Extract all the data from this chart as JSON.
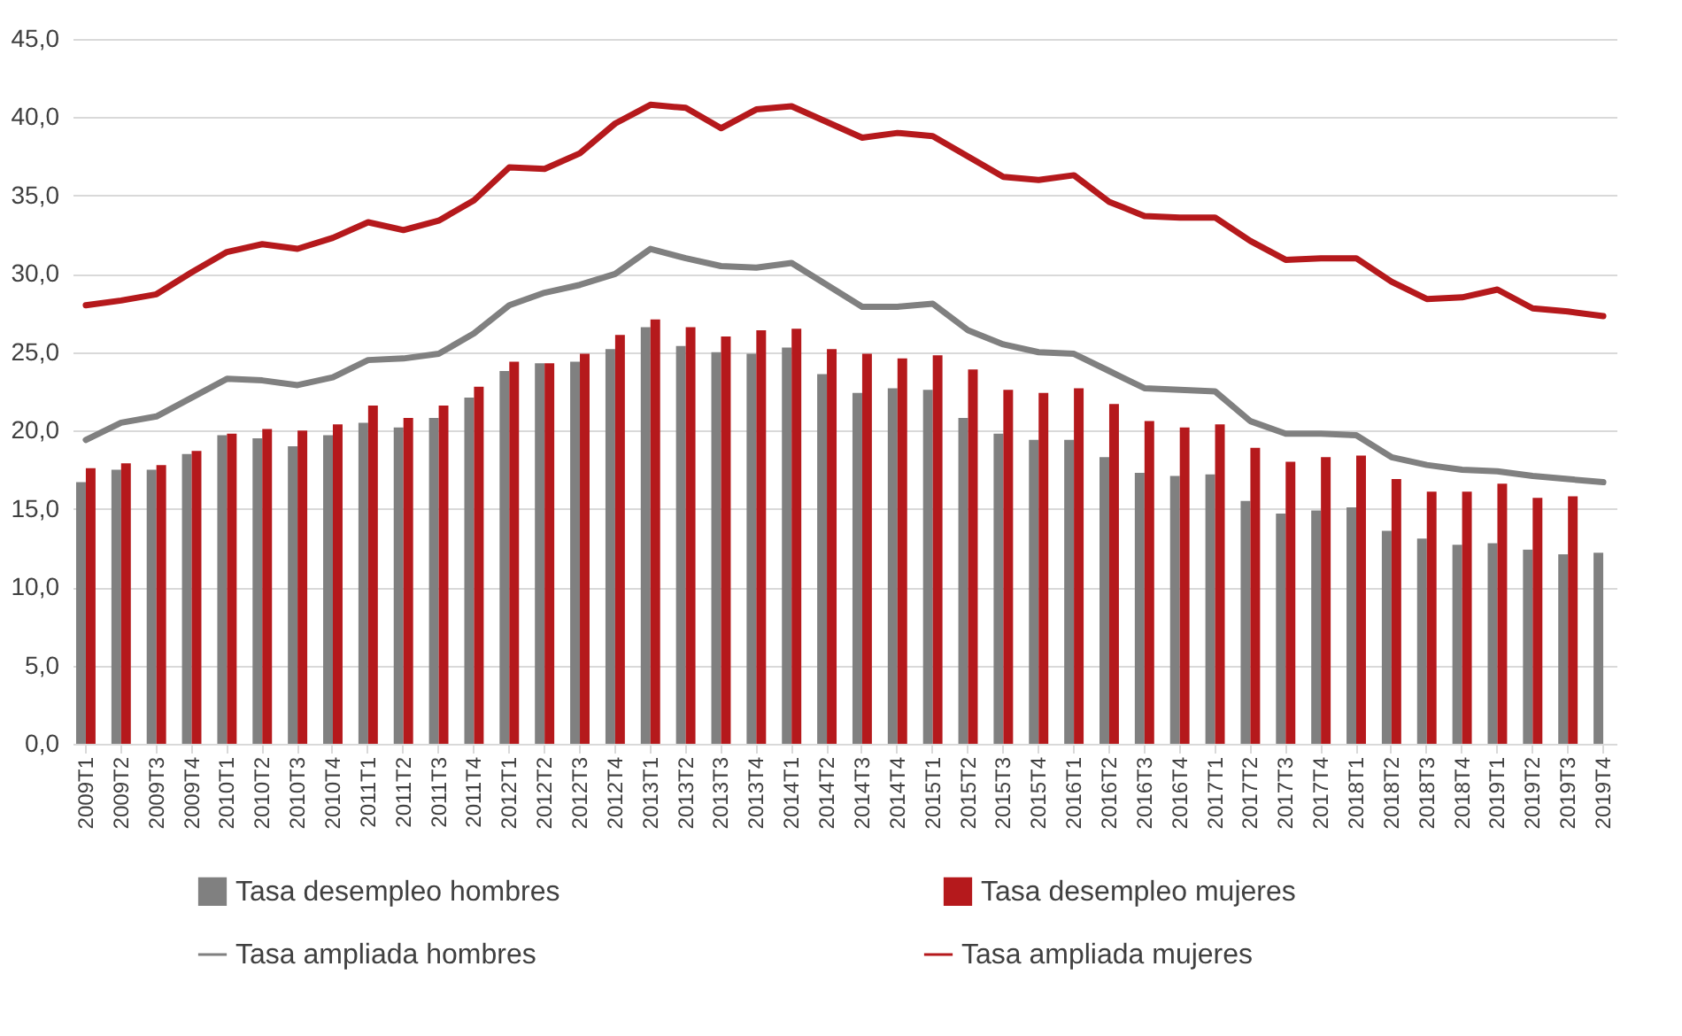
{
  "chart_data": {
    "type": "bar",
    "categories": [
      "2009T1",
      "2009T2",
      "2009T3",
      "2009T4",
      "2010T1",
      "2010T2",
      "2010T3",
      "2010T4",
      "2011T1",
      "2011T2",
      "2011T3",
      "2011T4",
      "2012T1",
      "2012T2",
      "2012T3",
      "2012T4",
      "2013T1",
      "2013T2",
      "2013T3",
      "2013T4",
      "2014T1",
      "2014T2",
      "2014T3",
      "2014T4",
      "2015T1",
      "2015T2",
      "2015T3",
      "2015T4",
      "2016T1",
      "2016T2",
      "2016T3",
      "2016T4",
      "2017T1",
      "2017T2",
      "2017T3",
      "2017T4",
      "2018T1",
      "2018T2",
      "2018T3",
      "2018T4",
      "2019T1",
      "2019T2",
      "2019T3",
      "2019T4"
    ],
    "series": [
      {
        "name": "Tasa desempleo hombres",
        "color": "#808080",
        "values": [
          16.7,
          17.5,
          17.5,
          18.5,
          19.7,
          19.5,
          19.0,
          19.7,
          20.5,
          20.2,
          20.8,
          22.1,
          23.8,
          24.3,
          24.4,
          25.2,
          26.6,
          25.4,
          25.0,
          24.9,
          25.3,
          23.6,
          22.4,
          22.7,
          22.6,
          20.8,
          19.8,
          19.4,
          19.4,
          18.3,
          17.3,
          17.1,
          17.2,
          15.5,
          14.7,
          14.9,
          15.1,
          13.6,
          13.1,
          12.7,
          12.8,
          12.4,
          12.1,
          12.2
        ]
      },
      {
        "name": "Tasa desempleo mujeres",
        "color": "#b5191c",
        "values": [
          17.6,
          17.9,
          17.8,
          18.7,
          19.8,
          20.1,
          20.0,
          20.4,
          21.6,
          20.8,
          21.6,
          22.8,
          24.4,
          24.3,
          24.9,
          26.1,
          27.1,
          26.6,
          26.0,
          26.4,
          26.5,
          25.2,
          24.9,
          24.6,
          24.8,
          23.9,
          22.6,
          22.4,
          22.7,
          21.7,
          20.6,
          20.2,
          20.4,
          18.9,
          18.0,
          18.3,
          18.4,
          16.9,
          16.1,
          16.1,
          16.6,
          15.7,
          15.8,
          null
        ]
      },
      {
        "name": "Tasa ampliada hombres",
        "type": "line",
        "color": "#808080",
        "values": [
          19.4,
          20.5,
          20.9,
          22.1,
          23.3,
          23.2,
          22.9,
          23.4,
          24.5,
          24.6,
          24.9,
          26.2,
          28.0,
          28.8,
          29.3,
          30.0,
          31.6,
          31.0,
          30.5,
          30.4,
          30.7,
          29.3,
          27.9,
          27.9,
          28.1,
          26.4,
          25.5,
          25.0,
          24.9,
          23.8,
          22.7,
          22.6,
          22.5,
          20.6,
          19.8,
          19.8,
          19.7,
          18.3,
          17.8,
          17.5,
          17.4,
          17.1,
          16.9,
          16.7
        ]
      },
      {
        "name": "Tasa ampliada mujeres",
        "type": "line",
        "color": "#b5191c",
        "values": [
          28.0,
          28.3,
          28.7,
          30.1,
          31.4,
          31.9,
          31.6,
          32.3,
          33.3,
          32.8,
          33.4,
          34.7,
          36.8,
          36.7,
          37.7,
          39.6,
          40.8,
          40.6,
          39.3,
          40.5,
          40.7,
          39.7,
          38.7,
          39.0,
          38.8,
          37.5,
          36.2,
          36.0,
          36.3,
          34.6,
          33.7,
          33.6,
          33.6,
          32.1,
          30.9,
          31.0,
          31.0,
          29.5,
          28.4,
          28.5,
          29.0,
          27.8,
          27.6,
          27.3
        ]
      }
    ],
    "ylim": [
      0,
      45
    ],
    "yticks": [
      {
        "value": 0,
        "label": "0,0"
      },
      {
        "value": 5,
        "label": "5,0"
      },
      {
        "value": 10,
        "label": "10,0"
      },
      {
        "value": 15,
        "label": "15,0"
      },
      {
        "value": 20,
        "label": "20,0"
      },
      {
        "value": 25,
        "label": "25,0"
      },
      {
        "value": 30,
        "label": "30,0"
      },
      {
        "value": 35,
        "label": "35,0"
      },
      {
        "value": 40,
        "label": "40,0"
      },
      {
        "value": 45,
        "label": "45,0"
      }
    ],
    "grid": "y",
    "legend": "bottom"
  }
}
